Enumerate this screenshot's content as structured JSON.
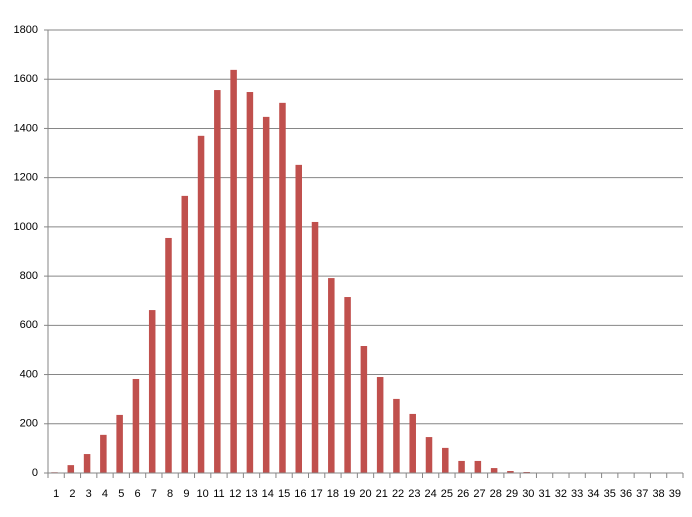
{
  "chart_data": {
    "type": "bar",
    "categories": [
      1,
      2,
      3,
      4,
      5,
      6,
      7,
      8,
      9,
      10,
      11,
      12,
      13,
      14,
      15,
      16,
      17,
      18,
      19,
      20,
      21,
      22,
      23,
      24,
      25,
      26,
      27,
      28,
      29,
      30,
      31,
      32,
      33,
      34,
      35,
      36,
      37,
      38,
      39
    ],
    "values": [
      3,
      32,
      77,
      155,
      236,
      382,
      662,
      955,
      1126,
      1370,
      1556,
      1638,
      1548,
      1447,
      1504,
      1252,
      1020,
      792,
      715,
      516,
      390,
      301,
      240,
      146,
      102,
      49,
      49,
      20,
      8,
      4,
      0,
      2,
      0,
      0,
      2,
      2,
      0,
      0,
      2
    ],
    "color": "#c0504d",
    "ylim": [
      0,
      1800
    ],
    "yticks": [
      0,
      200,
      400,
      600,
      800,
      1000,
      1200,
      1400,
      1600,
      1800
    ],
    "grid": true
  }
}
